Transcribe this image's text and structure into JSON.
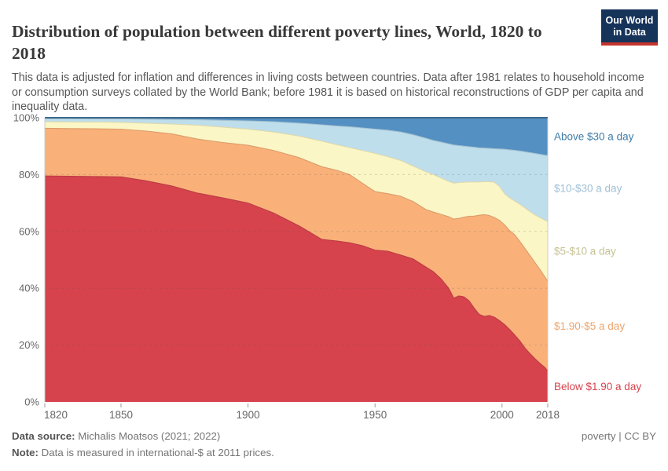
{
  "header": {
    "title": "Distribution of population between different poverty lines, World, 1820 to 2018",
    "subtitle": "This data is adjusted for inflation and differences in living costs between countries. Data after 1981 relates to household income or consumption surveys collated by the World Bank; before 1981 it is based on historical reconstructions of GDP per capita and inequality data.",
    "logo": {
      "line1": "Our World",
      "line2": "in Data",
      "bg_color": "#16335a",
      "accent_color": "#c4352c"
    }
  },
  "chart_data": {
    "type": "area",
    "stacked": true,
    "unit": "%",
    "title": "Distribution of population between different poverty lines, World, 1820 to 2018",
    "xlabel": "",
    "ylabel": "",
    "xlim": [
      1820,
      2018
    ],
    "ylim": [
      0,
      100
    ],
    "grid": "dashed-horizontal",
    "legend_position": "right-edge-labels",
    "x_ticks": [
      1820,
      1850,
      1900,
      1950,
      2000,
      2018
    ],
    "x_tick_labels": [
      "1820",
      "1850",
      "1900",
      "1950",
      "2000",
      "2018"
    ],
    "y_ticks": [
      0,
      20,
      40,
      60,
      80,
      100
    ],
    "y_tick_labels": [
      "0%",
      "20%",
      "40%",
      "60%",
      "80%",
      "100%"
    ],
    "x": [
      1820,
      1830,
      1840,
      1850,
      1860,
      1870,
      1880,
      1890,
      1900,
      1910,
      1920,
      1929,
      1935,
      1940,
      1945,
      1950,
      1955,
      1960,
      1965,
      1970,
      1973,
      1976,
      1979,
      1981,
      1983,
      1985,
      1987,
      1989,
      1991,
      1993,
      1995,
      1997,
      1999,
      2001,
      2003,
      2005,
      2007,
      2009,
      2011,
      2013,
      2015,
      2017,
      2018
    ],
    "series": [
      {
        "name": "Below $1.90 a day",
        "color": "#d6434d",
        "label_color": "#d6434d",
        "values": [
          79.5,
          79.4,
          79.3,
          79.2,
          77.8,
          76.0,
          73.5,
          71.8,
          70.0,
          66.5,
          62.0,
          57.2,
          56.6,
          56.0,
          55.0,
          53.4,
          53.0,
          51.7,
          50.3,
          47.5,
          45.8,
          43.3,
          40.0,
          36.5,
          37.3,
          37.0,
          35.6,
          33.0,
          30.8,
          30.1,
          30.4,
          29.8,
          28.6,
          27.2,
          25.5,
          23.5,
          21.5,
          19.0,
          17.0,
          15.2,
          13.5,
          12.0,
          10.8
        ]
      },
      {
        "name": "$1.90-$5 a day",
        "color": "#f9b179",
        "label_color": "#eca46e",
        "values": [
          16.8,
          16.8,
          16.8,
          16.8,
          17.5,
          18.3,
          19.0,
          19.5,
          20.3,
          22.0,
          24.0,
          25.6,
          24.9,
          24.0,
          22.0,
          20.6,
          20.3,
          20.7,
          20.2,
          20.2,
          21.0,
          22.7,
          25.2,
          27.8,
          27.3,
          28.0,
          29.7,
          32.4,
          34.9,
          35.8,
          35.2,
          35.1,
          35.3,
          35.1,
          34.8,
          35.3,
          35.0,
          35.0,
          34.5,
          33.8,
          33.0,
          31.8,
          31.7
        ]
      },
      {
        "name": "$5-$10 a day",
        "color": "#fbf6c6",
        "label_color": "#c6c294",
        "values": [
          2.3,
          2.3,
          2.4,
          2.4,
          2.8,
          3.5,
          4.9,
          5.4,
          5.7,
          6.5,
          7.6,
          9.0,
          9.0,
          9.5,
          11.5,
          13.5,
          13.0,
          12.6,
          12.5,
          13.3,
          13.2,
          12.8,
          12.4,
          12.7,
          12.6,
          12.3,
          12.1,
          12.0,
          11.7,
          11.6,
          11.9,
          12.4,
          11.9,
          11.0,
          11.5,
          11.9,
          13.1,
          14.3,
          15.5,
          16.8,
          18.3,
          20.1,
          21.0
        ]
      },
      {
        "name": "$10-$30 a day",
        "color": "#bedeec",
        "label_color": "#9fc0d5",
        "values": [
          1.1,
          1.2,
          1.1,
          1.2,
          1.4,
          1.6,
          1.9,
          2.4,
          2.9,
          3.6,
          4.5,
          5.7,
          6.6,
          7.3,
          7.9,
          8.5,
          9.3,
          10.0,
          11.0,
          11.8,
          12.0,
          12.6,
          13.2,
          13.4,
          13.0,
          12.7,
          12.4,
          12.2,
          12.0,
          11.8,
          11.7,
          11.8,
          13.2,
          15.6,
          16.9,
          17.8,
          18.7,
          19.7,
          20.7,
          21.6,
          22.3,
          22.9,
          23.2
        ]
      },
      {
        "name": "Above $30 a day",
        "color": "#5590c2",
        "label_color": "#3e7ca8",
        "values": [
          0.3,
          0.3,
          0.4,
          0.4,
          0.5,
          0.6,
          0.7,
          0.9,
          1.1,
          1.4,
          1.9,
          2.5,
          2.9,
          3.2,
          3.6,
          4.0,
          4.4,
          5.0,
          6.0,
          7.2,
          8.0,
          8.6,
          9.2,
          9.6,
          9.8,
          10.0,
          10.2,
          10.4,
          10.6,
          10.7,
          10.8,
          10.9,
          11.0,
          11.1,
          11.3,
          11.5,
          11.7,
          12.0,
          12.3,
          12.6,
          12.9,
          13.2,
          13.3
        ]
      }
    ],
    "axis_text_color": "#666666",
    "gridline_color": "#555555",
    "plot_edge_color": "#cccccc"
  },
  "footer": {
    "source_label": "Data source:",
    "source_text": " Michalis Moatsos (2021; 2022)",
    "note_label": "Note:",
    "note_text": " Data is measured in international-$ at 2011 prices.",
    "right_text": "poverty | CC BY"
  }
}
